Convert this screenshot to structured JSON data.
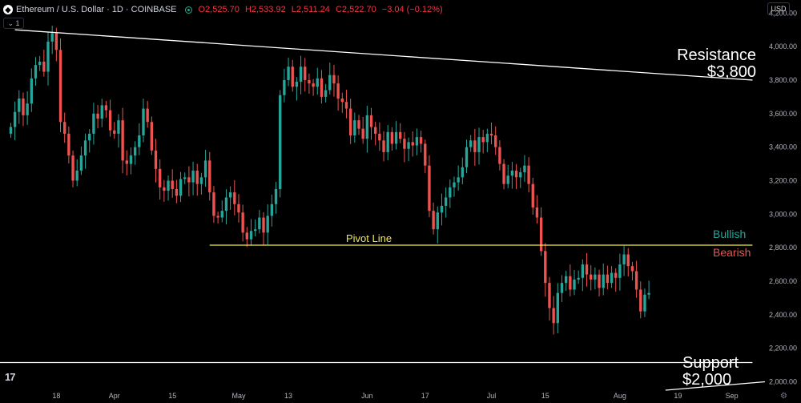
{
  "header": {
    "coin_icon": "ethereum-coin-icon",
    "symbol": "Ethereum / U.S. Dollar · 1D · COINBASE",
    "open": "O2,525.70",
    "high": "H2,533.92",
    "low": "L2,511.24",
    "close": "C2,522.70",
    "change": "−3.04 (−0.12%)",
    "indicator_toggle": "1",
    "currency": "USD"
  },
  "colors": {
    "bull": "#26a69a",
    "bear": "#ef5350",
    "background": "#000000",
    "axis_text": "#b2b5be",
    "pivot": "#f2e94e",
    "bullish_label": "#26a69a",
    "bearish_label": "#ef5350"
  },
  "chart_data": {
    "type": "candlestick",
    "symbol": "ETH/USD",
    "timeframe": "1D",
    "ylim": [
      1950,
      4230
    ],
    "y_ticks": [
      "4,200.00",
      "4,000.00",
      "3,800.00",
      "3,600.00",
      "3,400.00",
      "3,200.00",
      "3,000.00",
      "2,800.00",
      "2,600.00",
      "2,400.00",
      "2,200.00",
      "2,000.00"
    ],
    "y_tick_values": [
      4200,
      4000,
      3800,
      3600,
      3400,
      3200,
      3000,
      2800,
      2600,
      2400,
      2200,
      2000
    ],
    "x_ticks": [
      "18",
      "Apr",
      "15",
      "May",
      "13",
      "Jun",
      "17",
      "Jul",
      "15",
      "Aug",
      "19",
      "Sep"
    ],
    "x_tick_days": [
      0,
      14,
      28,
      44,
      56,
      75,
      89,
      105,
      118,
      136,
      150,
      163
    ],
    "x_range_days": [
      -13.6,
      171.2
    ],
    "candles_close": [
      3520,
      3610,
      3690,
      3590,
      3660,
      3810,
      3890,
      3910,
      3850,
      4030,
      4080,
      3980,
      3550,
      3480,
      3350,
      3200,
      3260,
      3350,
      3440,
      3480,
      3600,
      3570,
      3650,
      3620,
      3500,
      3480,
      3560,
      3320,
      3300,
      3350,
      3400,
      3470,
      3630,
      3550,
      3380,
      3270,
      3160,
      3140,
      3200,
      3150,
      3110,
      3210,
      3220,
      3190,
      3260,
      3180,
      3220,
      3320,
      3130,
      2990,
      2980,
      3020,
      3100,
      3130,
      3060,
      3010,
      2890,
      2850,
      2900,
      2910,
      2980,
      2890,
      2990,
      3060,
      3150,
      3710,
      3800,
      3880,
      3760,
      3790,
      3880,
      3800,
      3780,
      3760,
      3810,
      3700,
      3740,
      3830,
      3780,
      3690,
      3670,
      3630,
      3470,
      3560,
      3510,
      3450,
      3590,
      3520,
      3480,
      3440,
      3370,
      3490,
      3420,
      3490,
      3450,
      3390,
      3430,
      3410,
      3460,
      3420,
      3290,
      3020,
      2910,
      3010,
      3050,
      3100,
      3160,
      3190,
      3220,
      3280,
      3400,
      3440,
      3370,
      3460,
      3430,
      3480,
      3470,
      3400,
      3300,
      3180,
      3230,
      3260,
      3220,
      3250,
      3290,
      3180,
      3040,
      2980,
      2780,
      2590,
      2440,
      2350,
      2530,
      2590,
      2630,
      2550,
      2610,
      2620,
      2700,
      2640,
      2610,
      2640,
      2560,
      2640,
      2590,
      2650,
      2620,
      2700,
      2760,
      2690,
      2660,
      2550,
      2420,
      2520,
      2530
    ],
    "annotations": {
      "resistance_label": "Resistance",
      "resistance_value": "$3,800",
      "support_label": "Support",
      "support_value": "$2,000",
      "pivot_label": "Pivot Line",
      "bullish_label": "Bullish",
      "bearish_label": "Bearish"
    },
    "resistance_line": {
      "from": [
        -10,
        4100
      ],
      "to": [
        168,
        3800
      ]
    },
    "pivot_line": {
      "from": [
        37,
        2815
      ],
      "to": [
        168,
        2815
      ]
    },
    "support_line": {
      "from": [
        -13.6,
        2115
      ],
      "to": [
        168,
        2115
      ]
    },
    "support_sloped_line": {
      "from": [
        147,
        1950
      ],
      "to": [
        171,
        2000
      ]
    }
  }
}
